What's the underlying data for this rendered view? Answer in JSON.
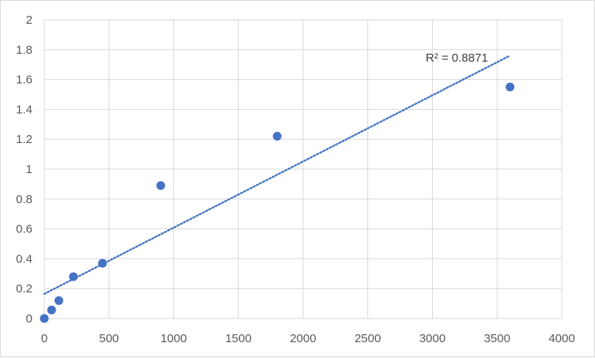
{
  "chart_data": {
    "type": "scatter",
    "title": "",
    "xlabel": "",
    "ylabel": "",
    "xlim": [
      0,
      4000
    ],
    "ylim": [
      0,
      2
    ],
    "x_ticks": [
      0,
      500,
      1000,
      1500,
      2000,
      2500,
      3000,
      3500,
      4000
    ],
    "y_ticks": [
      0,
      0.2,
      0.4,
      0.6,
      0.8,
      1,
      1.2,
      1.4,
      1.6,
      1.8,
      2
    ],
    "grid": true,
    "legend": "none",
    "series": [
      {
        "x": [
          0,
          56.25,
          112.5,
          225,
          450,
          900,
          1800,
          3600
        ],
        "y": [
          0,
          0.057,
          0.12,
          0.28,
          0.37,
          0.89,
          1.22,
          1.55
        ],
        "color": "#4472c4"
      }
    ],
    "trendline": {
      "type": "linear",
      "x_range": [
        0,
        3600
      ],
      "y_start": 0.165,
      "y_end": 1.76,
      "color": "#4472c4",
      "style": "dotted"
    },
    "annotation": "R² = 0.8871",
    "colors": {
      "grid": "#d9d9d9",
      "tick_text": "#595959"
    }
  }
}
